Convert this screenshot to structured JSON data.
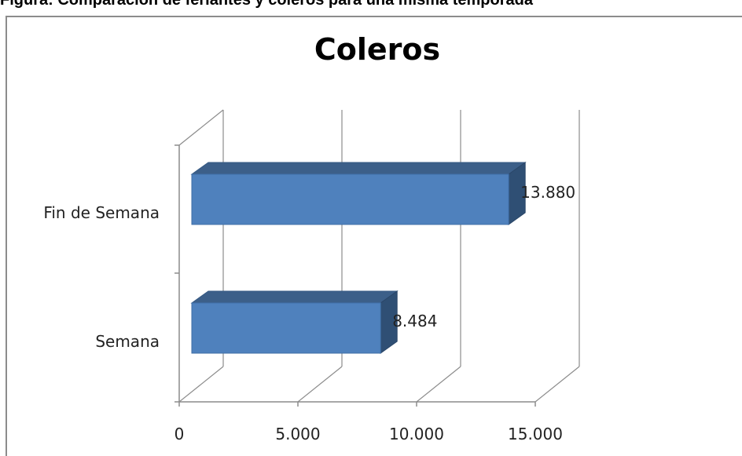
{
  "figure_caption": "Figura: Comparación de feriantes y coleros para una misma temporada",
  "chart_data": {
    "type": "bar",
    "orientation": "horizontal",
    "style": "3d",
    "title": "Coleros",
    "categories": [
      "Semana",
      "Fin de Semana"
    ],
    "values": [
      8484,
      13880
    ],
    "value_labels": [
      "8.484",
      "13.880"
    ],
    "xlim": [
      0,
      15000
    ],
    "xticks": [
      0,
      5000,
      10000,
      15000
    ],
    "xtick_labels": [
      "0",
      "5.000",
      "10.000",
      "15.000"
    ],
    "grid": true,
    "legend": "none",
    "colors": {
      "bar_front": "#4f81bd",
      "bar_top": "#3c5f89",
      "bar_side": "#2f4f74",
      "grid": "#8c8c8c"
    }
  }
}
